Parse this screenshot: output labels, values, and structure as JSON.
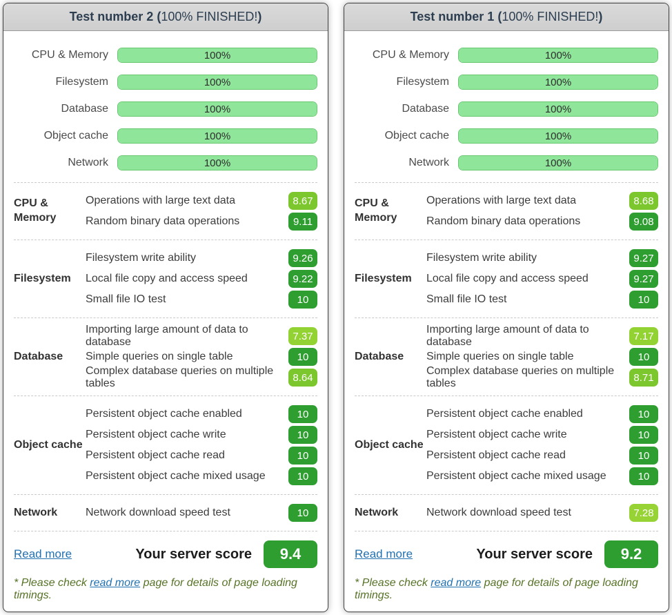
{
  "theme": {
    "badge_green_dark": "#2e9e30",
    "badge_green_light": "#7dc72e",
    "badge_green_lighter": "#93d233",
    "progress_fill": "#8fe59a",
    "progress_border": "#67c76f",
    "link_blue": "#2271b1"
  },
  "panels": [
    {
      "header": {
        "title_prefix": "Test number 2 (",
        "status": "100% FINISHED!",
        "close_paren": ")"
      },
      "progress": [
        {
          "label": "CPU & Memory",
          "percent": "100%",
          "width": "100%"
        },
        {
          "label": "Filesystem",
          "percent": "100%",
          "width": "100%"
        },
        {
          "label": "Database",
          "percent": "100%",
          "width": "100%"
        },
        {
          "label": "Object cache",
          "percent": "100%",
          "width": "100%"
        },
        {
          "label": "Network",
          "percent": "100%",
          "width": "100%"
        }
      ],
      "sections": [
        {
          "category": "CPU & Memory",
          "tests": [
            {
              "name": "Operations with large text data",
              "score": "8.67",
              "color": "#7dc72e"
            },
            {
              "name": "Random binary data operations",
              "score": "9.11",
              "color": "#2e9e30"
            }
          ]
        },
        {
          "category": "Filesystem",
          "tests": [
            {
              "name": "Filesystem write ability",
              "score": "9.26",
              "color": "#2e9e30"
            },
            {
              "name": "Local file copy and access speed",
              "score": "9.22",
              "color": "#2e9e30"
            },
            {
              "name": "Small file IO test",
              "score": "10",
              "color": "#2e9e30"
            }
          ]
        },
        {
          "category": "Database",
          "tests": [
            {
              "name": "Importing large amount of data to database",
              "score": "7.37",
              "color": "#93d233"
            },
            {
              "name": "Simple queries on single table",
              "score": "10",
              "color": "#2e9e30"
            },
            {
              "name": "Complex database queries on multiple tables",
              "score": "8.64",
              "color": "#7dc72e"
            }
          ]
        },
        {
          "category": "Object cache",
          "tests": [
            {
              "name": "Persistent object cache enabled",
              "score": "10",
              "color": "#2e9e30"
            },
            {
              "name": "Persistent object cache write",
              "score": "10",
              "color": "#2e9e30"
            },
            {
              "name": "Persistent object cache read",
              "score": "10",
              "color": "#2e9e30"
            },
            {
              "name": "Persistent object cache mixed usage",
              "score": "10",
              "color": "#2e9e30"
            }
          ]
        },
        {
          "category": "Network",
          "tests": [
            {
              "name": "Network download speed test",
              "score": "10",
              "color": "#2e9e30"
            }
          ]
        }
      ],
      "footer": {
        "read_more": "Read more",
        "score_label": "Your server score",
        "score": "9.4",
        "score_color": "#2e9e30"
      },
      "footnote": {
        "prefix": "* Please check ",
        "link": "read more",
        "suffix": " page for details of page loading timings."
      }
    },
    {
      "header": {
        "title_prefix": "Test number 1 (",
        "status": "100% FINISHED!",
        "close_paren": ")"
      },
      "progress": [
        {
          "label": "CPU & Memory",
          "percent": "100%",
          "width": "100%"
        },
        {
          "label": "Filesystem",
          "percent": "100%",
          "width": "100%"
        },
        {
          "label": "Database",
          "percent": "100%",
          "width": "100%"
        },
        {
          "label": "Object cache",
          "percent": "100%",
          "width": "100%"
        },
        {
          "label": "Network",
          "percent": "100%",
          "width": "100%"
        }
      ],
      "sections": [
        {
          "category": "CPU & Memory",
          "tests": [
            {
              "name": "Operations with large text data",
              "score": "8.68",
              "color": "#7dc72e"
            },
            {
              "name": "Random binary data operations",
              "score": "9.08",
              "color": "#2e9e30"
            }
          ]
        },
        {
          "category": "Filesystem",
          "tests": [
            {
              "name": "Filesystem write ability",
              "score": "9.27",
              "color": "#2e9e30"
            },
            {
              "name": "Local file copy and access speed",
              "score": "9.27",
              "color": "#2e9e30"
            },
            {
              "name": "Small file IO test",
              "score": "10",
              "color": "#2e9e30"
            }
          ]
        },
        {
          "category": "Database",
          "tests": [
            {
              "name": "Importing large amount of data to database",
              "score": "7.17",
              "color": "#93d233"
            },
            {
              "name": "Simple queries on single table",
              "score": "10",
              "color": "#2e9e30"
            },
            {
              "name": "Complex database queries on multiple tables",
              "score": "8.71",
              "color": "#7dc72e"
            }
          ]
        },
        {
          "category": "Object cache",
          "tests": [
            {
              "name": "Persistent object cache enabled",
              "score": "10",
              "color": "#2e9e30"
            },
            {
              "name": "Persistent object cache write",
              "score": "10",
              "color": "#2e9e30"
            },
            {
              "name": "Persistent object cache read",
              "score": "10",
              "color": "#2e9e30"
            },
            {
              "name": "Persistent object cache mixed usage",
              "score": "10",
              "color": "#2e9e30"
            }
          ]
        },
        {
          "category": "Network",
          "tests": [
            {
              "name": "Network download speed test",
              "score": "7.28",
              "color": "#97d334"
            }
          ]
        }
      ],
      "footer": {
        "read_more": "Read more",
        "score_label": "Your server score",
        "score": "9.2",
        "score_color": "#2e9e30"
      },
      "footnote": {
        "prefix": "* Please check ",
        "link": "read more",
        "suffix": " page for details of page loading timings."
      }
    }
  ]
}
